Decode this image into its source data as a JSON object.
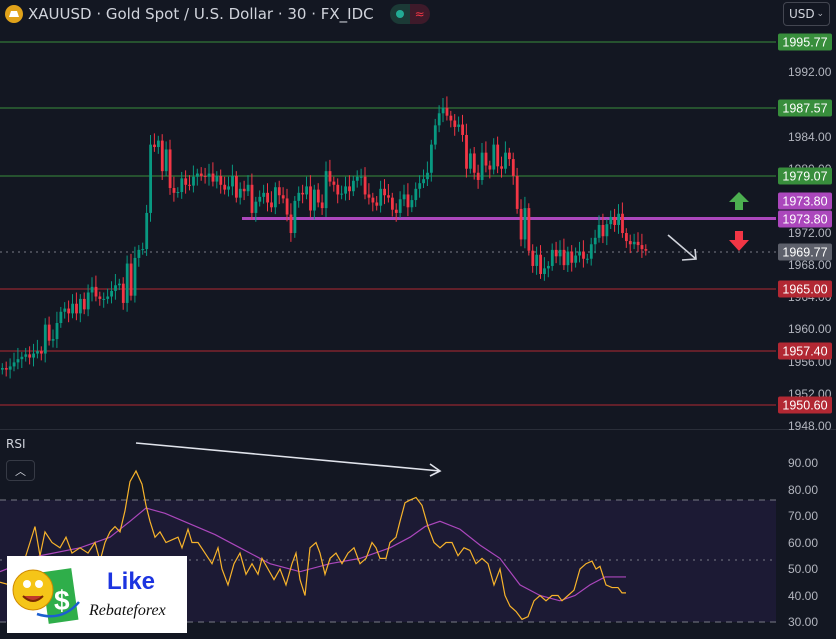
{
  "header": {
    "symbol_title": "XAUUSD · Gold Spot / U.S. Dollar · 30 · FX_IDC",
    "symbol_icon": "gold-bars-icon",
    "market_status_icons": [
      "market-open-dot-icon",
      "delayed-data-icon"
    ],
    "currency_select": "USD"
  },
  "price_scale": {
    "ticks": [
      "1992.00",
      "1984.00",
      "1980.00",
      "1972.00",
      "1968.00",
      "1964.00",
      "1960.00",
      "1956.00",
      "1952.00",
      "1948.00"
    ],
    "levels": [
      {
        "price": "1995.77",
        "color": "#388e3c",
        "kind": "resistance"
      },
      {
        "price": "1987.57",
        "color": "#388e3c",
        "kind": "resistance"
      },
      {
        "price": "1979.07",
        "color": "#388e3c",
        "kind": "resistance"
      },
      {
        "price": "1973.80",
        "color": "#ab47bc",
        "kind": "pivot"
      },
      {
        "price": "1965.00",
        "color": "#b22833",
        "kind": "support"
      },
      {
        "price": "1957.40",
        "color": "#b22833",
        "kind": "support"
      },
      {
        "price": "1950.60",
        "color": "#b22833",
        "kind": "support"
      }
    ],
    "pivot_label_top": "1973.80",
    "pivot_label_bottom": "1973.80",
    "current_price": "1969.77"
  },
  "annotations": {
    "up_arrow_color": "#4caf50",
    "down_arrow_color": "#f23645",
    "trend_arrow_color": "#d1d4dc"
  },
  "rsi": {
    "title": "RSI",
    "collapse_icon": "chevron-up-icon",
    "ticks": [
      "90.00",
      "80.00",
      "70.00",
      "60.00",
      "50.00",
      "40.00",
      "30.00"
    ],
    "upper_band": 70,
    "middle_band": 50,
    "lower_band": 30,
    "line_color": "#f7b32b",
    "ma_color": "#ab47bc"
  },
  "colors": {
    "background": "#131722",
    "bull": "#089981",
    "bear": "#f23645"
  },
  "watermark": {
    "line1": "Like",
    "line2": "Rebateforex"
  }
}
